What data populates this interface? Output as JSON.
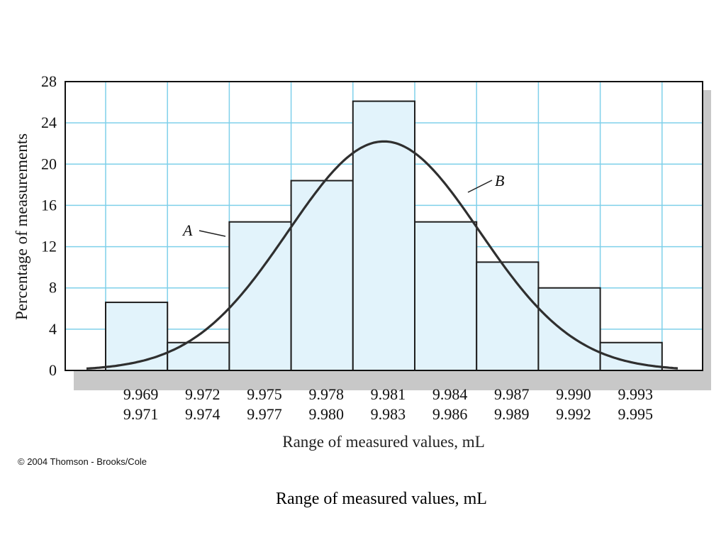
{
  "chart_data": {
    "type": "bar",
    "ylabel": "Percentage of measurements",
    "xlabel": "Range of measured values, mL",
    "ylim": [
      0,
      28
    ],
    "yticks": [
      "0",
      "4",
      "8",
      "12",
      "16",
      "20",
      "24",
      "28"
    ],
    "grid": true,
    "categories": [
      {
        "low": "9.969",
        "high": "9.971"
      },
      {
        "low": "9.972",
        "high": "9.974"
      },
      {
        "low": "9.975",
        "high": "9.977"
      },
      {
        "low": "9.978",
        "high": "9.980"
      },
      {
        "low": "9.981",
        "high": "9.983"
      },
      {
        "low": "9.984",
        "high": "9.986"
      },
      {
        "low": "9.987",
        "high": "9.989"
      },
      {
        "low": "9.990",
        "high": "9.992"
      },
      {
        "low": "9.993",
        "high": "9.995"
      }
    ],
    "values": [
      6.6,
      2.7,
      14.4,
      18.4,
      26.1,
      14.4,
      10.5,
      8.0,
      2.7
    ],
    "curve": {
      "description": "Gaussian fit",
      "peak_value": 22.2,
      "peak_category_index": 4,
      "label": "B"
    },
    "bar_label": "A",
    "colors": {
      "bar_fill": "#e2f3fb",
      "bar_stroke": "#1e1e1e",
      "grid": "#7fd0ea",
      "curve": "#2f2f2f",
      "frame_shadow": "#c8c8c8"
    }
  },
  "copyright": "© 2004 Thomson - Brooks/Cole",
  "caption": "Range of measured values, mL"
}
